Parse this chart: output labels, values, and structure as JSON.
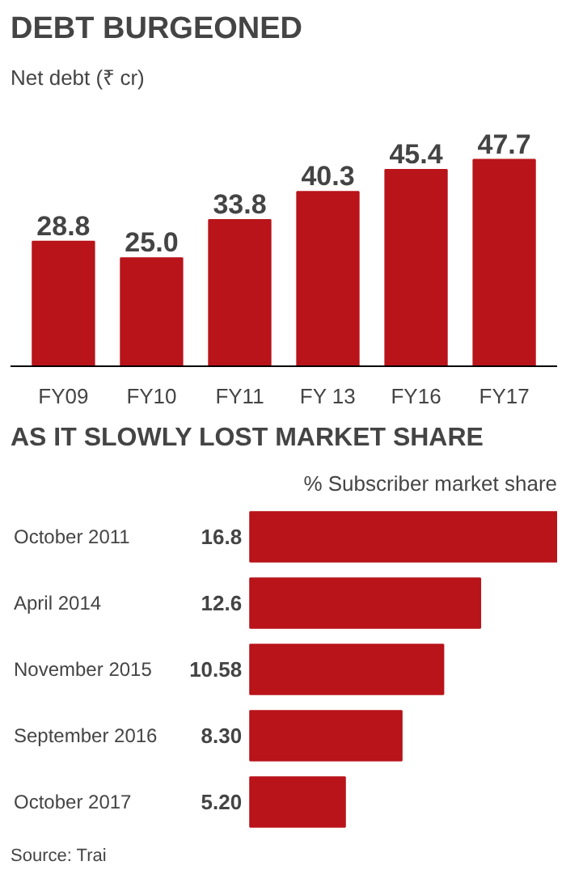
{
  "chart_data": [
    {
      "type": "bar",
      "title": "DEBT BURGEONED",
      "subtitle": "Net debt (₹ cr)",
      "categories": [
        "FY09",
        "FY10",
        "FY11",
        "FY 13",
        "FY16",
        "FY17"
      ],
      "values": [
        28.8,
        25.0,
        33.8,
        40.3,
        45.4,
        47.7
      ],
      "value_labels": [
        "28.8",
        "25.0",
        "33.8",
        "40.3",
        "45.4",
        "47.7"
      ],
      "color": "#b8141a",
      "tick_labels": "x",
      "grid": false
    },
    {
      "type": "bar",
      "orientation": "horizontal",
      "title": "AS IT SLOWLY LOST MARKET SHARE",
      "subtitle": "% Subscriber market share",
      "categories": [
        "October 2011",
        "April 2014",
        "November 2015",
        "September 2016",
        "October 2017"
      ],
      "values": [
        16.8,
        12.6,
        10.58,
        8.3,
        5.2
      ],
      "value_labels": [
        "16.8",
        "12.6",
        "10.58",
        "8.30",
        "5.20"
      ],
      "color": "#b8141a",
      "tick_labels": "y",
      "grid": false,
      "annotations": [
        "Source: Trai"
      ]
    }
  ]
}
